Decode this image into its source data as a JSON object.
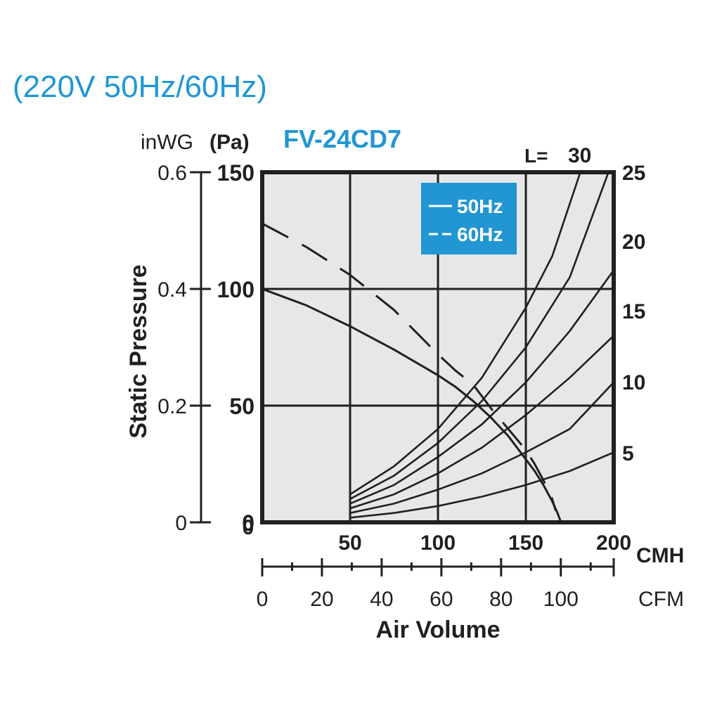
{
  "header": {
    "voltage_label": "(220V 50Hz/60Hz)",
    "model": "FV-24CD7"
  },
  "colors": {
    "accent": "#2196d3",
    "plot_bg": "#e6e7e8",
    "ink": "#231f20"
  },
  "chart_data": {
    "type": "line",
    "title": "FV-24CD7",
    "ylabel": "Static Pressure",
    "xlabel": "Air Volume",
    "x_unit_primary": "CMH",
    "x_unit_secondary": "CFM",
    "y_unit_primary": "(Pa)",
    "y_unit_secondary": "inWG",
    "xlim": [
      0,
      200
    ],
    "ylim": [
      0,
      150
    ],
    "x_ticks": [
      "50",
      "100",
      "150",
      "200"
    ],
    "x_tick_zero": "0",
    "y_ticks": [
      "0",
      "50",
      "100",
      "150"
    ],
    "y_ticks_inwg": [
      "0",
      "0.2",
      "0.4",
      "0.6"
    ],
    "cfm_ticks": [
      "0",
      "20",
      "40",
      "60",
      "80",
      "100"
    ],
    "grid": true,
    "legend_position": "top-right",
    "series": [
      {
        "name": "50Hz",
        "style": "solid",
        "x": [
          0,
          25,
          50,
          75,
          100,
          110,
          120,
          130,
          140,
          150,
          155,
          160,
          165,
          168,
          170
        ],
        "y": [
          100,
          93,
          84,
          74,
          63,
          58,
          52,
          45,
          37,
          27,
          22,
          16,
          9,
          4,
          0
        ]
      },
      {
        "name": "60Hz",
        "style": "dashed",
        "x": [
          0,
          25,
          50,
          75,
          100,
          110,
          120,
          130,
          140,
          150,
          155,
          160,
          165,
          167
        ],
        "y": [
          128,
          118,
          106,
          91,
          72,
          65,
          59,
          49,
          40,
          31,
          25,
          18,
          10,
          5
        ]
      }
    ],
    "duct_resistance_curves": {
      "label_prefix": "L=",
      "labels": [
        "30",
        "25",
        "20",
        "15",
        "10",
        "5"
      ],
      "curves": [
        {
          "L": "30",
          "x": [
            50,
            75,
            100,
            125,
            150,
            165,
            181
          ],
          "y": [
            12,
            24,
            40,
            62,
            92,
            114,
            150
          ]
        },
        {
          "L": "25",
          "x": [
            50,
            75,
            100,
            125,
            150,
            175,
            197
          ],
          "y": [
            10,
            20,
            34,
            52,
            75,
            105,
            150
          ]
        },
        {
          "L": "20",
          "x": [
            50,
            75,
            100,
            125,
            150,
            175,
            200
          ],
          "y": [
            8,
            16,
            28,
            42,
            60,
            82,
            108
          ]
        },
        {
          "L": "15",
          "x": [
            50,
            75,
            100,
            125,
            150,
            175,
            200
          ],
          "y": [
            6,
            12,
            21,
            32,
            46,
            62,
            80
          ]
        },
        {
          "L": "10",
          "x": [
            50,
            75,
            100,
            125,
            150,
            175,
            200
          ],
          "y": [
            4,
            8,
            14,
            21,
            30,
            40,
            60
          ]
        },
        {
          "L": "5",
          "x": [
            50,
            75,
            100,
            125,
            150,
            175,
            200
          ],
          "y": [
            2,
            4,
            7,
            11,
            16,
            22,
            30
          ]
        }
      ]
    },
    "legend": {
      "items": [
        "50Hz",
        "60Hz"
      ]
    }
  }
}
